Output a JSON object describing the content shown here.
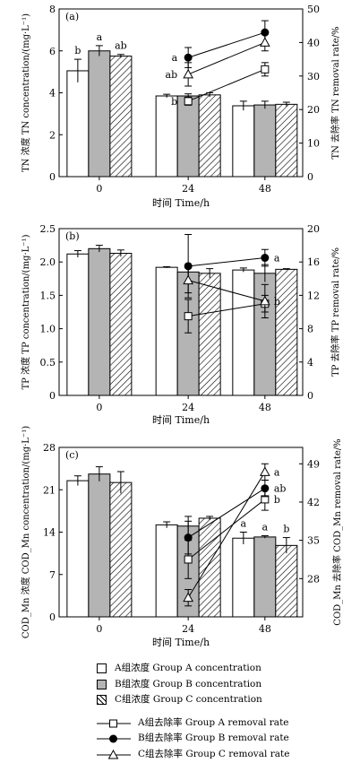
{
  "colors": {
    "bar_A": "#ffffff",
    "bar_B": "#b4b4b4",
    "stroke": "#000000"
  },
  "chart_data": [
    {
      "type": "bar",
      "panel": "(a)",
      "xlabel": "时间 Time/h",
      "ylabel": "TN 浓度 TN concentration/(mg·L⁻¹)",
      "y2label": "TN 去除率 TN removal rate/%",
      "categories": [
        "0",
        "24",
        "48"
      ],
      "ylim": [
        0,
        8
      ],
      "yticks": [
        "0",
        "2",
        "4",
        "6",
        "8"
      ],
      "y2lim": [
        0,
        50
      ],
      "y2ticks": [
        "0",
        "10",
        "20",
        "30",
        "40",
        "50"
      ],
      "bars": [
        {
          "name": "A组浓度 Group A concentration",
          "values": [
            5.05,
            3.85,
            3.38
          ],
          "errors": [
            0.55,
            0.08,
            0.22
          ]
        },
        {
          "name": "B组浓度 Group B concentration",
          "values": [
            6.0,
            3.85,
            3.42
          ],
          "errors": [
            0.25,
            0.1,
            0.18
          ]
        },
        {
          "name": "C组浓度 Group C concentration",
          "values": [
            5.75,
            3.9,
            3.45
          ],
          "errors": [
            0.08,
            0.1,
            0.1
          ]
        }
      ],
      "bar_labels": [
        {
          "category": 0,
          "bar": 0,
          "text": "b"
        },
        {
          "category": 0,
          "bar": 1,
          "text": "a"
        },
        {
          "category": 0,
          "bar": 2,
          "text": "ab"
        }
      ],
      "lines": [
        {
          "name": "A组去除率 Group A removal rate",
          "x": [
            "24",
            "48"
          ],
          "values": [
            22.5,
            32.0
          ],
          "errors": [
            1.2,
            2.0
          ],
          "labels": [
            "b",
            ""
          ]
        },
        {
          "name": "B组去除率 Group B removal rate",
          "x": [
            "24",
            "48"
          ],
          "values": [
            35.5,
            43.0
          ],
          "errors": [
            3.0,
            3.5
          ],
          "labels": [
            "a",
            ""
          ]
        },
        {
          "name": "C组去除率 Group C removal rate",
          "x": [
            "24",
            "48"
          ],
          "values": [
            30.5,
            40.0
          ],
          "errors": [
            3.5,
            2.5
          ],
          "labels": [
            "ab",
            ""
          ]
        }
      ]
    },
    {
      "type": "bar",
      "panel": "(b)",
      "xlabel": "时间 Time/h",
      "ylabel": "TP 浓度 TP concentration/(mg·L⁻¹)",
      "y2label": "TP 去除率 TP removal rate/%",
      "categories": [
        "0",
        "24",
        "48"
      ],
      "ylim": [
        0,
        2.5
      ],
      "yticks": [
        "0",
        "0.5",
        "1.0",
        "1.5",
        "2.0",
        "2.5"
      ],
      "y2lim": [
        0,
        20
      ],
      "y2ticks": [
        "0",
        "4",
        "8",
        "12",
        "16",
        "20"
      ],
      "bars": [
        {
          "name": "A组浓度 Group A concentration",
          "values": [
            2.12,
            1.92,
            1.88
          ],
          "errors": [
            0.05,
            0.01,
            0.03
          ]
        },
        {
          "name": "B组浓度 Group B concentration",
          "values": [
            2.2,
            1.85,
            1.83
          ],
          "errors": [
            0.05,
            0.08,
            0.13
          ]
        },
        {
          "name": "C组浓度 Group C concentration",
          "values": [
            2.13,
            1.83,
            1.89
          ],
          "errors": [
            0.05,
            0.07,
            0.01
          ]
        }
      ],
      "bar_labels": [],
      "lines": [
        {
          "name": "A组去除率 Group A removal rate",
          "x": [
            "24",
            "48"
          ],
          "values": [
            9.5,
            11.0
          ],
          "errors": [
            2.0,
            1.0
          ],
          "labels": [
            "",
            ""
          ]
        },
        {
          "name": "B组去除率 Group B removal rate",
          "x": [
            "24",
            "48"
          ],
          "values": [
            15.5,
            16.5
          ],
          "errors": [
            3.8,
            1.0
          ],
          "labels": [
            "",
            "a"
          ]
        },
        {
          "name": "C组去除率 Group C removal rate",
          "x": [
            "24",
            "48"
          ],
          "values": [
            13.8,
            11.3
          ],
          "errors": [
            1.5,
            2.0
          ],
          "labels": [
            "",
            "b"
          ]
        }
      ]
    },
    {
      "type": "bar",
      "panel": "(c)",
      "xlabel": "时间 Time/h",
      "ylabel": "COD_Mn 浓度 COD_Mn concentration/(mg·L⁻¹)",
      "y2label": "COD_Mn 去除率 COD_Mn removal rate/%",
      "categories": [
        "0",
        "24",
        "48"
      ],
      "ylim": [
        0,
        28
      ],
      "yticks": [
        "0",
        "7",
        "14",
        "21",
        "28"
      ],
      "y2lim": [
        21,
        52
      ],
      "y2ticks": [
        "28",
        "35",
        "42",
        "49"
      ],
      "bars": [
        {
          "name": "A组浓度 Group A concentration",
          "values": [
            22.5,
            15.2,
            13.0
          ],
          "errors": [
            0.8,
            0.5,
            1.0
          ]
        },
        {
          "name": "B组浓度 Group B concentration",
          "values": [
            23.6,
            15.0,
            13.2
          ],
          "errors": [
            1.2,
            1.6,
            0.2
          ]
        },
        {
          "name": "C组浓度 Group C concentration",
          "values": [
            22.2,
            16.3,
            11.8
          ],
          "errors": [
            1.8,
            0.3,
            1.3
          ]
        }
      ],
      "bar_labels": [
        {
          "category": 2,
          "bar": 0,
          "text": "a"
        },
        {
          "category": 2,
          "bar": 1,
          "text": "a"
        },
        {
          "category": 2,
          "bar": 2,
          "text": "b"
        }
      ],
      "lines": [
        {
          "name": "A组去除率 Group A removal rate",
          "x": [
            "24",
            "48"
          ],
          "values": [
            31.5,
            42.5
          ],
          "errors": [
            3.5,
            2.0
          ],
          "labels": [
            "",
            "b"
          ]
        },
        {
          "name": "B组去除率 Group B removal rate",
          "x": [
            "24",
            "48"
          ],
          "values": [
            35.5,
            44.5
          ],
          "errors": [
            3.0,
            1.5
          ],
          "labels": [
            "",
            "ab"
          ]
        },
        {
          "name": "C组去除率 Group C removal rate",
          "x": [
            "24",
            "48"
          ],
          "values": [
            24.5,
            47.5
          ],
          "errors": [
            1.5,
            1.5
          ],
          "labels": [
            "",
            "a"
          ]
        }
      ]
    }
  ],
  "legend": {
    "bars": [
      {
        "label": "A组浓度 Group A concentration",
        "pattern": "open"
      },
      {
        "label": "B组浓度 Group B concentration",
        "pattern": "gray"
      },
      {
        "label": "C组浓度 Group C concentration",
        "pattern": "hatch"
      }
    ],
    "lines": [
      {
        "label": "A组去除率 Group A removal rate",
        "marker": "open-square"
      },
      {
        "label": "B组去除率 Group B removal rate",
        "marker": "filled-circle"
      },
      {
        "label": "C组去除率 Group C removal rate",
        "marker": "open-triangle"
      }
    ]
  }
}
